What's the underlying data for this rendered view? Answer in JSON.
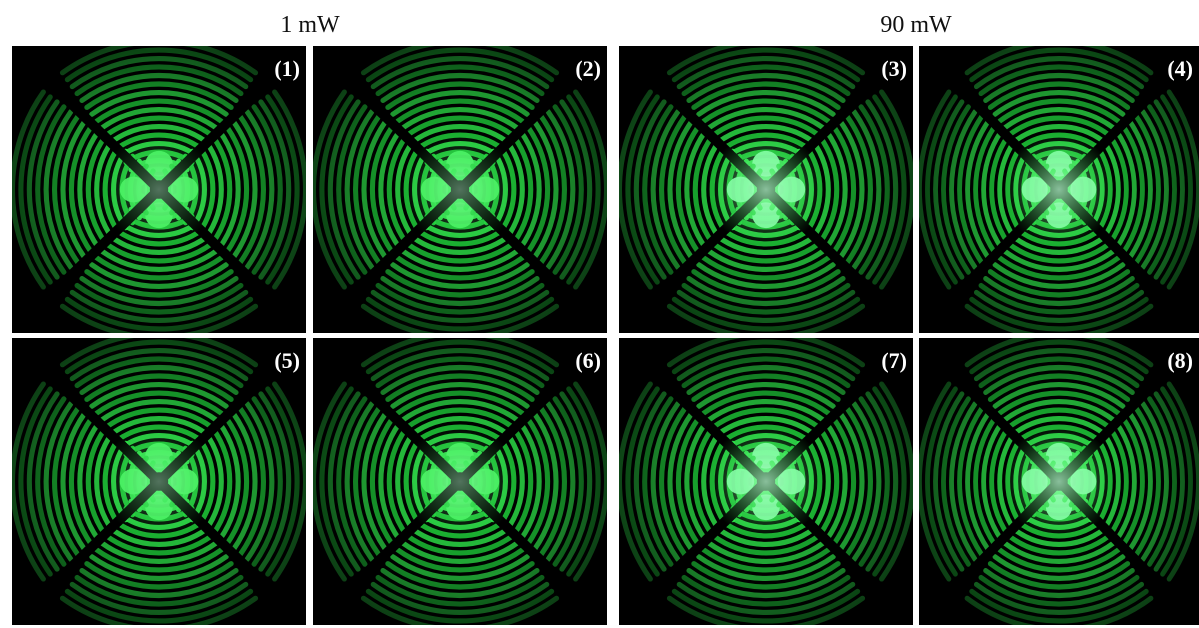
{
  "groups": [
    {
      "title": "1 mW",
      "panels": [
        "(1)",
        "(2)",
        "(5)",
        "(6)"
      ]
    },
    {
      "title": "90 mW",
      "panels": [
        "(3)",
        "(4)",
        "(7)",
        "(8)"
      ]
    }
  ],
  "colors": {
    "background": "#ffffff",
    "panel": "#000000",
    "fringe": "#2ee84a",
    "label": "#ffffff"
  }
}
